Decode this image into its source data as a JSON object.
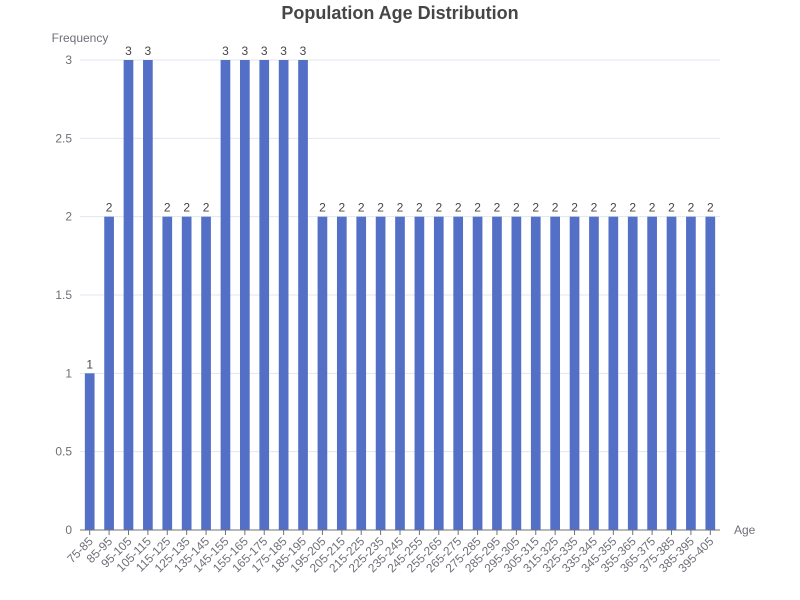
{
  "chart_data": {
    "type": "bar",
    "title": "Population Age Distribution",
    "xlabel": "Age",
    "ylabel": "Frequency",
    "ylim": [
      0,
      3
    ],
    "yticks": [
      "0",
      "0.5",
      "1",
      "1.5",
      "2",
      "2.5",
      "3"
    ],
    "grid": true,
    "bar_color": "#5470c6",
    "categories": [
      "75-85",
      "85-95",
      "95-105",
      "105-115",
      "115-125",
      "125-135",
      "135-145",
      "145-155",
      "155-165",
      "165-175",
      "175-185",
      "185-195",
      "195-205",
      "205-215",
      "215-225",
      "225-235",
      "235-245",
      "245-255",
      "255-265",
      "265-275",
      "275-285",
      "285-295",
      "295-305",
      "305-315",
      "315-325",
      "325-335",
      "335-345",
      "345-355",
      "355-365",
      "365-375",
      "375-385",
      "385-395",
      "395-405"
    ],
    "values": [
      1,
      2,
      3,
      3,
      2,
      2,
      2,
      3,
      3,
      3,
      3,
      3,
      2,
      2,
      2,
      2,
      2,
      2,
      2,
      2,
      2,
      2,
      2,
      2,
      2,
      2,
      2,
      2,
      2,
      2,
      2,
      2,
      2
    ]
  }
}
